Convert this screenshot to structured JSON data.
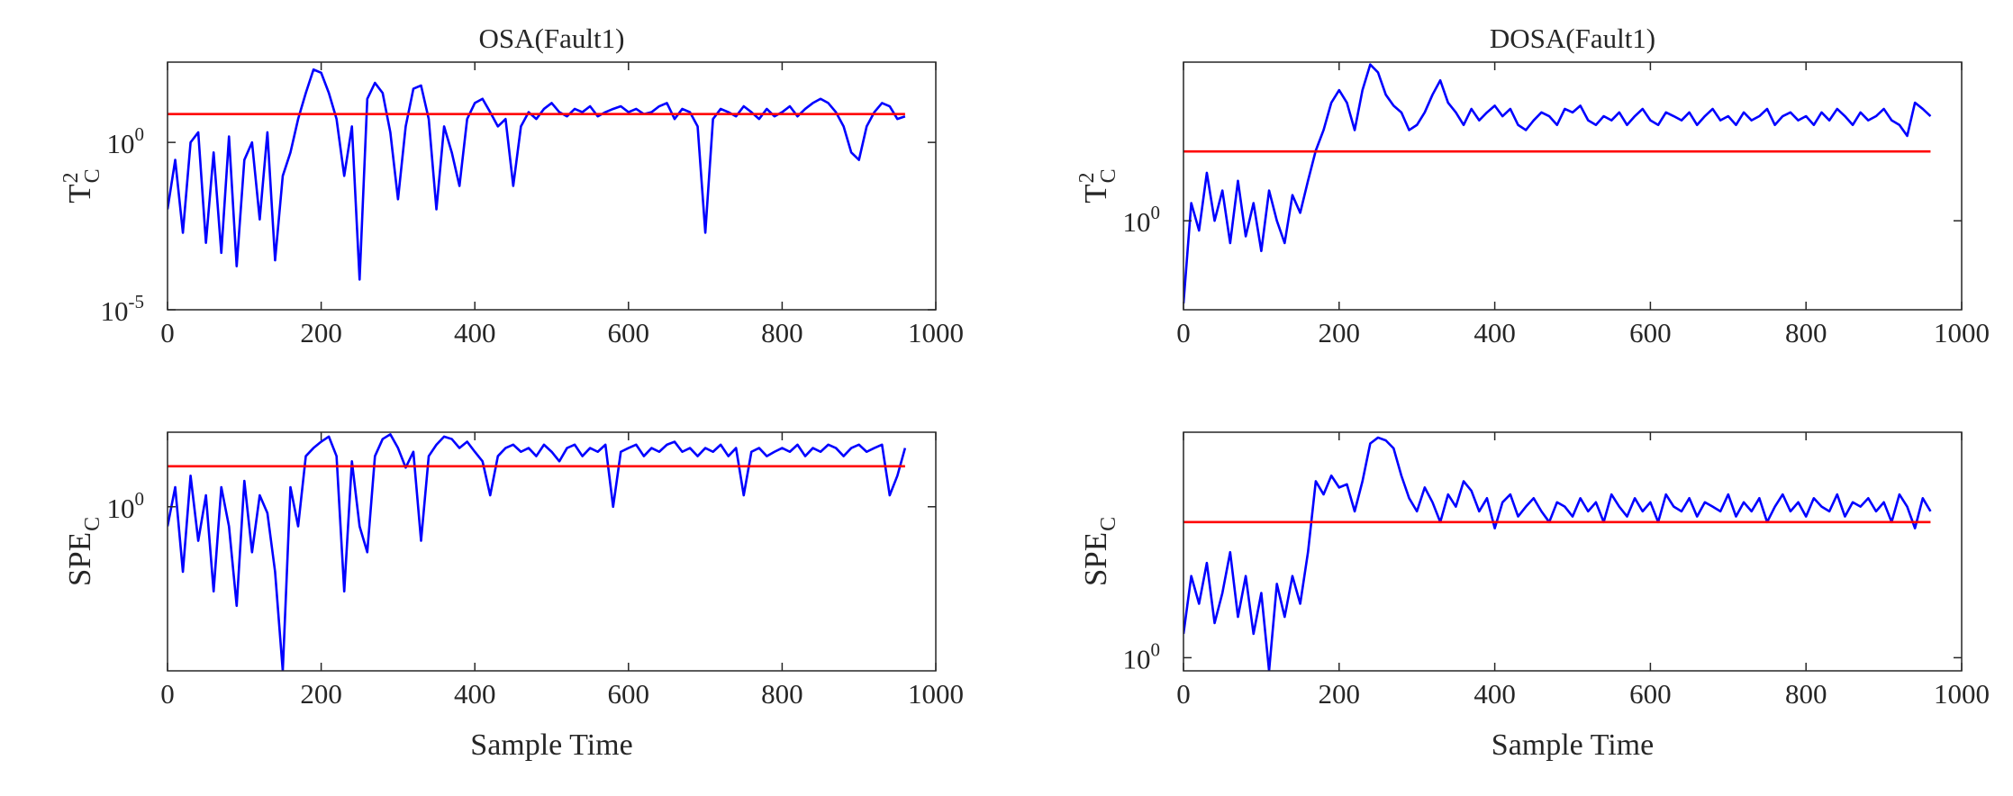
{
  "chart_data": [
    {
      "type": "line",
      "title": "OSA(Fault1)",
      "ylabel": {
        "text": "T",
        "sup": "2",
        "sub": "C"
      },
      "yscale": "log",
      "xlim": [
        0,
        1000
      ],
      "xticks": [
        0,
        200,
        400,
        600,
        800,
        1000
      ],
      "ylim": [
        1e-05,
        250
      ],
      "yticks": [
        {
          "value": 1e-05,
          "label": "10",
          "exp": "-5"
        },
        {
          "value": 1,
          "label": "10",
          "exp": "0"
        }
      ],
      "threshold": 7,
      "threshold_color": "#ff0000",
      "x": [
        0,
        10,
        20,
        30,
        40,
        50,
        60,
        70,
        80,
        90,
        100,
        110,
        120,
        130,
        140,
        150,
        160,
        170,
        180,
        190,
        200,
        210,
        220,
        230,
        240,
        250,
        260,
        270,
        280,
        290,
        300,
        310,
        320,
        330,
        340,
        350,
        360,
        370,
        380,
        390,
        400,
        410,
        420,
        430,
        440,
        450,
        460,
        470,
        480,
        490,
        500,
        510,
        520,
        530,
        540,
        550,
        560,
        570,
        580,
        590,
        600,
        610,
        620,
        630,
        640,
        650,
        660,
        670,
        680,
        690,
        700,
        710,
        720,
        730,
        740,
        750,
        760,
        770,
        780,
        790,
        800,
        810,
        820,
        830,
        840,
        850,
        860,
        870,
        880,
        890,
        900,
        910,
        920,
        930,
        940,
        950,
        960
      ],
      "series": [
        {
          "color": "#0000ff",
          "values": [
            0.01,
            0.3,
            0.002,
            1,
            2,
            0.001,
            0.5,
            0.0005,
            1.5,
            0.0002,
            0.3,
            1,
            0.005,
            2,
            0.0003,
            0.1,
            0.5,
            5,
            30,
            150,
            120,
            30,
            5,
            0.1,
            3,
            8e-05,
            20,
            60,
            30,
            2,
            0.02,
            3,
            40,
            50,
            5,
            0.01,
            3,
            0.5,
            0.05,
            5,
            15,
            20,
            8,
            3,
            5,
            0.05,
            3,
            8,
            5,
            10,
            15,
            8,
            6,
            10,
            8,
            12,
            6,
            8,
            10,
            12,
            8,
            10,
            7,
            8,
            12,
            15,
            5,
            10,
            8,
            3,
            0.002,
            5,
            10,
            8,
            6,
            12,
            8,
            5,
            10,
            6,
            8,
            12,
            6,
            10,
            15,
            20,
            15,
            8,
            3,
            0.5,
            0.3,
            3,
            8,
            15,
            12,
            5,
            6
          ]
        }
      ]
    },
    {
      "type": "line",
      "title": "DOSA(Fault1)",
      "ylabel": {
        "text": "T",
        "sup": "2",
        "sub": "C"
      },
      "yscale": "log",
      "xlim": [
        0,
        1000
      ],
      "xticks": [
        0,
        200,
        400,
        600,
        800,
        1000
      ],
      "ylim": [
        0.13,
        38
      ],
      "yticks": [
        {
          "value": 1,
          "label": "10",
          "exp": "0"
        }
      ],
      "threshold": 4.9,
      "threshold_color": "#ff0000",
      "x": [
        0,
        10,
        20,
        30,
        40,
        50,
        60,
        70,
        80,
        90,
        100,
        110,
        120,
        130,
        140,
        150,
        160,
        170,
        180,
        190,
        200,
        210,
        220,
        230,
        240,
        250,
        260,
        270,
        280,
        290,
        300,
        310,
        320,
        330,
        340,
        350,
        360,
        370,
        380,
        390,
        400,
        410,
        420,
        430,
        440,
        450,
        460,
        470,
        480,
        490,
        500,
        510,
        520,
        530,
        540,
        550,
        560,
        570,
        580,
        590,
        600,
        610,
        620,
        630,
        640,
        650,
        660,
        670,
        680,
        690,
        700,
        710,
        720,
        730,
        740,
        750,
        760,
        770,
        780,
        790,
        800,
        810,
        820,
        830,
        840,
        850,
        860,
        870,
        880,
        890,
        900,
        910,
        920,
        930,
        940,
        950,
        960
      ],
      "series": [
        {
          "color": "#0000ff",
          "values": [
            0.15,
            1.5,
            0.8,
            3,
            1,
            2,
            0.6,
            2.5,
            0.7,
            1.5,
            0.5,
            2,
            1,
            0.6,
            1.8,
            1.2,
            2.5,
            5,
            8,
            15,
            20,
            15,
            8,
            20,
            36,
            30,
            18,
            14,
            12,
            8,
            9,
            12,
            18,
            25,
            15,
            12,
            9,
            13,
            10,
            12,
            14,
            11,
            13,
            9,
            8,
            10,
            12,
            11,
            9,
            13,
            12,
            14,
            10,
            9,
            11,
            10,
            12,
            9,
            11,
            13,
            10,
            9,
            12,
            11,
            10,
            12,
            9,
            11,
            13,
            10,
            11,
            9,
            12,
            10,
            11,
            13,
            9,
            11,
            12,
            10,
            11,
            9,
            12,
            10,
            13,
            11,
            9,
            12,
            10,
            11,
            13,
            10,
            9,
            7,
            15,
            13,
            11
          ]
        }
      ]
    },
    {
      "type": "line",
      "xlabel": "Sample Time",
      "ylabel": {
        "text": "SPE",
        "sub": "C"
      },
      "yscale": "log",
      "xlim": [
        0,
        1000
      ],
      "xticks": [
        0,
        200,
        400,
        600,
        800,
        1000
      ],
      "ylim": [
        0.003,
        14
      ],
      "yticks": [
        {
          "value": 1,
          "label": "10",
          "exp": "0"
        }
      ],
      "threshold": 4.2,
      "threshold_color": "#ff0000",
      "x": [
        0,
        10,
        20,
        30,
        40,
        50,
        60,
        70,
        80,
        90,
        100,
        110,
        120,
        130,
        140,
        150,
        160,
        170,
        180,
        190,
        200,
        210,
        220,
        230,
        240,
        250,
        260,
        270,
        280,
        290,
        300,
        310,
        320,
        330,
        340,
        350,
        360,
        370,
        380,
        390,
        400,
        410,
        420,
        430,
        440,
        450,
        460,
        470,
        480,
        490,
        500,
        510,
        520,
        530,
        540,
        550,
        560,
        570,
        580,
        590,
        600,
        610,
        620,
        630,
        640,
        650,
        660,
        670,
        680,
        690,
        700,
        710,
        720,
        730,
        740,
        750,
        760,
        770,
        780,
        790,
        800,
        810,
        820,
        830,
        840,
        850,
        860,
        870,
        880,
        890,
        900,
        910,
        920,
        930,
        940,
        950,
        960
      ],
      "series": [
        {
          "color": "#0000ff",
          "values": [
            0.5,
            2,
            0.1,
            3,
            0.3,
            1.5,
            0.05,
            2,
            0.5,
            0.03,
            2.5,
            0.2,
            1.5,
            0.8,
            0.1,
            0.003,
            2,
            0.5,
            6,
            8,
            10,
            12,
            6,
            0.05,
            5,
            0.5,
            0.2,
            6,
            11,
            13,
            8,
            4,
            7,
            0.3,
            6,
            9,
            12,
            11,
            8,
            10,
            7,
            5,
            1.5,
            6,
            8,
            9,
            7,
            8,
            6,
            9,
            7,
            5,
            8,
            9,
            6,
            8,
            7,
            9,
            1,
            7,
            8,
            9,
            6,
            8,
            7,
            9,
            10,
            7,
            8,
            6,
            8,
            7,
            9,
            6,
            8,
            1.5,
            7,
            8,
            6,
            7,
            8,
            7,
            9,
            6,
            8,
            7,
            9,
            8,
            6,
            8,
            9,
            7,
            8,
            9,
            1.5,
            3,
            8
          ]
        }
      ]
    },
    {
      "type": "line",
      "xlabel": "Sample Time",
      "ylabel": {
        "text": "SPE",
        "sub": "C"
      },
      "yscale": "log",
      "xlim": [
        0,
        1000
      ],
      "xticks": [
        0,
        200,
        400,
        600,
        800,
        1000
      ],
      "ylim": [
        0.8,
        46
      ],
      "yticks": [
        {
          "value": 1,
          "label": "10",
          "exp": "0"
        }
      ],
      "threshold": 10,
      "threshold_color": "#ff0000",
      "x": [
        0,
        10,
        20,
        30,
        40,
        50,
        60,
        70,
        80,
        90,
        100,
        110,
        120,
        130,
        140,
        150,
        160,
        170,
        180,
        190,
        200,
        210,
        220,
        230,
        240,
        250,
        260,
        270,
        280,
        290,
        300,
        310,
        320,
        330,
        340,
        350,
        360,
        370,
        380,
        390,
        400,
        410,
        420,
        430,
        440,
        450,
        460,
        470,
        480,
        490,
        500,
        510,
        520,
        530,
        540,
        550,
        560,
        570,
        580,
        590,
        600,
        610,
        620,
        630,
        640,
        650,
        660,
        670,
        680,
        690,
        700,
        710,
        720,
        730,
        740,
        750,
        760,
        770,
        780,
        790,
        800,
        810,
        820,
        830,
        840,
        850,
        860,
        870,
        880,
        890,
        900,
        910,
        920,
        930,
        940,
        950,
        960
      ],
      "series": [
        {
          "color": "#0000ff",
          "values": [
            1.5,
            4,
            2.5,
            5,
            1.8,
            3,
            6,
            2,
            4,
            1.5,
            3,
            0.8,
            3.5,
            2,
            4,
            2.5,
            6,
            20,
            16,
            22,
            18,
            19,
            12,
            20,
            38,
            42,
            40,
            35,
            22,
            15,
            12,
            18,
            14,
            10,
            16,
            13,
            20,
            17,
            12,
            15,
            9,
            14,
            16,
            11,
            13,
            15,
            12,
            10,
            14,
            13,
            11,
            15,
            12,
            14,
            10,
            16,
            13,
            11,
            15,
            12,
            14,
            10,
            16,
            13,
            12,
            15,
            11,
            14,
            13,
            12,
            16,
            11,
            14,
            12,
            15,
            10,
            13,
            16,
            12,
            14,
            11,
            15,
            13,
            12,
            16,
            11,
            14,
            13,
            15,
            12,
            14,
            10,
            16,
            13,
            9,
            15,
            12
          ]
        }
      ]
    }
  ]
}
